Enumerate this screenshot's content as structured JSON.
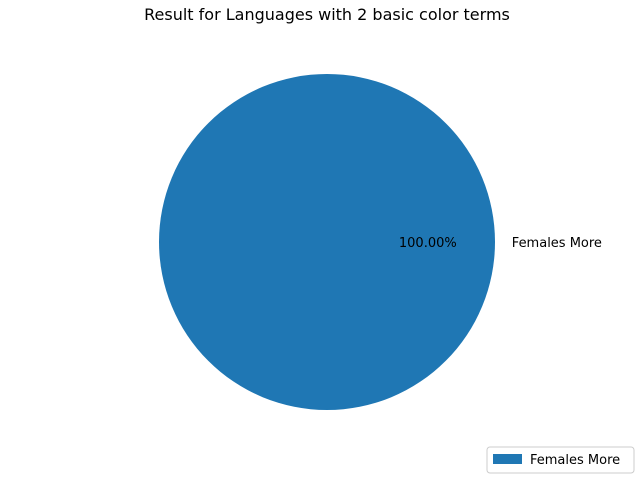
{
  "chart_data": {
    "type": "pie",
    "title": "Result for Languages with 2 basic color terms",
    "slices": [
      {
        "label": "Females More",
        "value": 100.0,
        "display": "100.00%",
        "color": "#1f77b4"
      }
    ],
    "legend": {
      "placement": "lower-right",
      "entries": [
        "Females More"
      ]
    }
  }
}
